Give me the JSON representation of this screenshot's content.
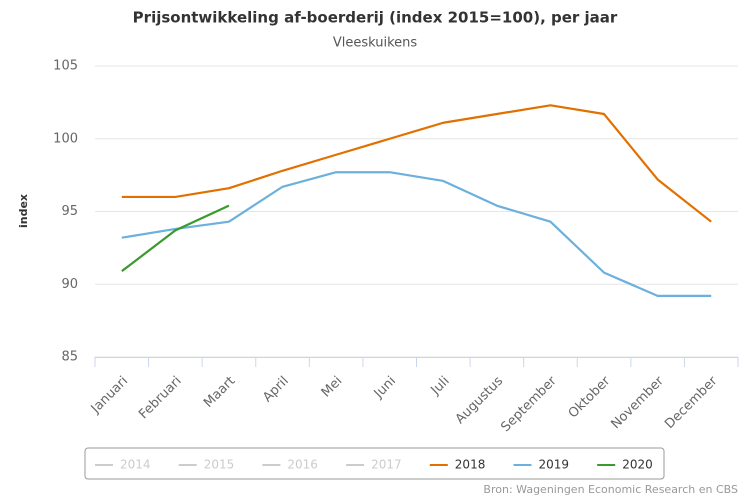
{
  "chart_data": {
    "type": "line",
    "title": "Prijsontwikkeling af-boerderij (index 2015=100), per jaar",
    "subtitle": "Vleeskuikens",
    "y_label": "index",
    "source": "Bron: Wageningen Economic Research en CBS",
    "categories": [
      "Januari",
      "Februari",
      "Maart",
      "April",
      "Mei",
      "Juni",
      "Juli",
      "Augustus",
      "September",
      "Oktober",
      "November",
      "December"
    ],
    "series": [
      {
        "name": "2014",
        "color": "#cccccc",
        "visible": false,
        "values": [
          null,
          null,
          null,
          null,
          null,
          null,
          null,
          null,
          null,
          null,
          null,
          null
        ]
      },
      {
        "name": "2015",
        "color": "#cccccc",
        "visible": false,
        "values": [
          null,
          null,
          null,
          null,
          null,
          null,
          null,
          null,
          null,
          null,
          null,
          null
        ]
      },
      {
        "name": "2016",
        "color": "#cccccc",
        "visible": false,
        "values": [
          null,
          null,
          null,
          null,
          null,
          null,
          null,
          null,
          null,
          null,
          null,
          null
        ]
      },
      {
        "name": "2017",
        "color": "#cccccc",
        "visible": false,
        "values": [
          null,
          null,
          null,
          null,
          null,
          null,
          null,
          null,
          null,
          null,
          null,
          null
        ]
      },
      {
        "name": "2018",
        "color": "#e17000",
        "visible": true,
        "values": [
          96.0,
          96.0,
          96.6,
          97.8,
          98.9,
          100.0,
          101.1,
          101.7,
          102.3,
          101.7,
          97.2,
          94.3
        ]
      },
      {
        "name": "2019",
        "color": "#6cb0dc",
        "visible": true,
        "values": [
          93.2,
          93.8,
          94.3,
          96.7,
          97.7,
          97.7,
          97.1,
          95.4,
          94.3,
          90.8,
          89.2,
          89.2
        ]
      },
      {
        "name": "2020",
        "color": "#3a9a2e",
        "visible": true,
        "values": [
          90.9,
          93.7,
          95.4,
          null,
          null,
          null,
          null,
          null,
          null,
          null,
          null,
          null
        ]
      }
    ],
    "ylim": [
      85,
      105
    ],
    "yticks": [
      85,
      90,
      95,
      100,
      105
    ],
    "grid": true,
    "legend": "bottom"
  }
}
